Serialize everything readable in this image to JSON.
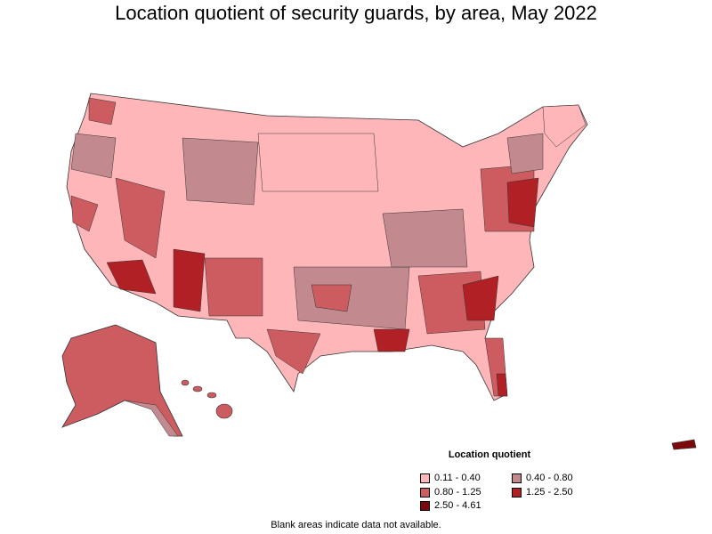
{
  "title": "Location quotient of security guards, by area, May 2022",
  "legend": {
    "title": "Location quotient",
    "items": [
      {
        "label": "0.11 - 0.40",
        "color": "#ffb6b9"
      },
      {
        "label": "0.40 - 0.80",
        "color": "#c28a8f"
      },
      {
        "label": "0.80 - 1.25",
        "color": "#cd5c60"
      },
      {
        "label": "1.25 - 2.50",
        "color": "#b02025"
      },
      {
        "label": "2.50 - 4.61",
        "color": "#7c0a0d"
      }
    ]
  },
  "footnote": "Blank areas indicate data not available."
}
